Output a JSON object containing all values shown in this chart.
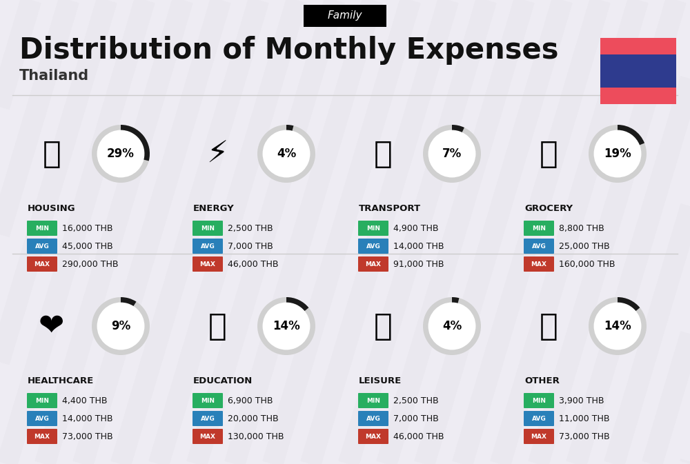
{
  "title": "Distribution of Monthly Expenses",
  "subtitle": "Thailand",
  "family_label": "Family",
  "bg_color": "#eeecf3",
  "title_color": "#111111",
  "subtitle_color": "#333333",
  "flag_colors": [
    "#ED4C5C",
    "#2E3B8E",
    "#ED4C5C"
  ],
  "stripe_color": "#e6e4eb",
  "divider_color": "#cccccc",
  "categories": [
    {
      "name": "HOUSING",
      "pct": 29,
      "emoji": "🏗",
      "min": "16,000 THB",
      "avg": "45,000 THB",
      "max": "290,000 THB",
      "row": 0,
      "col": 0
    },
    {
      "name": "ENERGY",
      "pct": 4,
      "emoji": "⚡",
      "min": "2,500 THB",
      "avg": "7,000 THB",
      "max": "46,000 THB",
      "row": 0,
      "col": 1
    },
    {
      "name": "TRANSPORT",
      "pct": 7,
      "emoji": "🚌",
      "min": "4,900 THB",
      "avg": "14,000 THB",
      "max": "91,000 THB",
      "row": 0,
      "col": 2
    },
    {
      "name": "GROCERY",
      "pct": 19,
      "emoji": "🛒",
      "min": "8,800 THB",
      "avg": "25,000 THB",
      "max": "160,000 THB",
      "row": 0,
      "col": 3
    },
    {
      "name": "HEALTHCARE",
      "pct": 9,
      "emoji": "❤️",
      "min": "4,400 THB",
      "avg": "14,000 THB",
      "max": "73,000 THB",
      "row": 1,
      "col": 0
    },
    {
      "name": "EDUCATION",
      "pct": 14,
      "emoji": "🎓",
      "min": "6,900 THB",
      "avg": "20,000 THB",
      "max": "130,000 THB",
      "row": 1,
      "col": 1
    },
    {
      "name": "LEISURE",
      "pct": 4,
      "emoji": "🛍️",
      "min": "2,500 THB",
      "avg": "7,000 THB",
      "max": "46,000 THB",
      "row": 1,
      "col": 2
    },
    {
      "name": "OTHER",
      "pct": 14,
      "emoji": "💰",
      "min": "3,900 THB",
      "avg": "11,000 THB",
      "max": "73,000 THB",
      "row": 1,
      "col": 3
    }
  ],
  "min_color": "#27AE60",
  "avg_color": "#2980B9",
  "max_color": "#C0392B",
  "circle_bg_color": "#d0d0d0",
  "circle_fill_color": "#1a1a1a",
  "badge_text_color": "#ffffff",
  "value_text_color": "#111111"
}
